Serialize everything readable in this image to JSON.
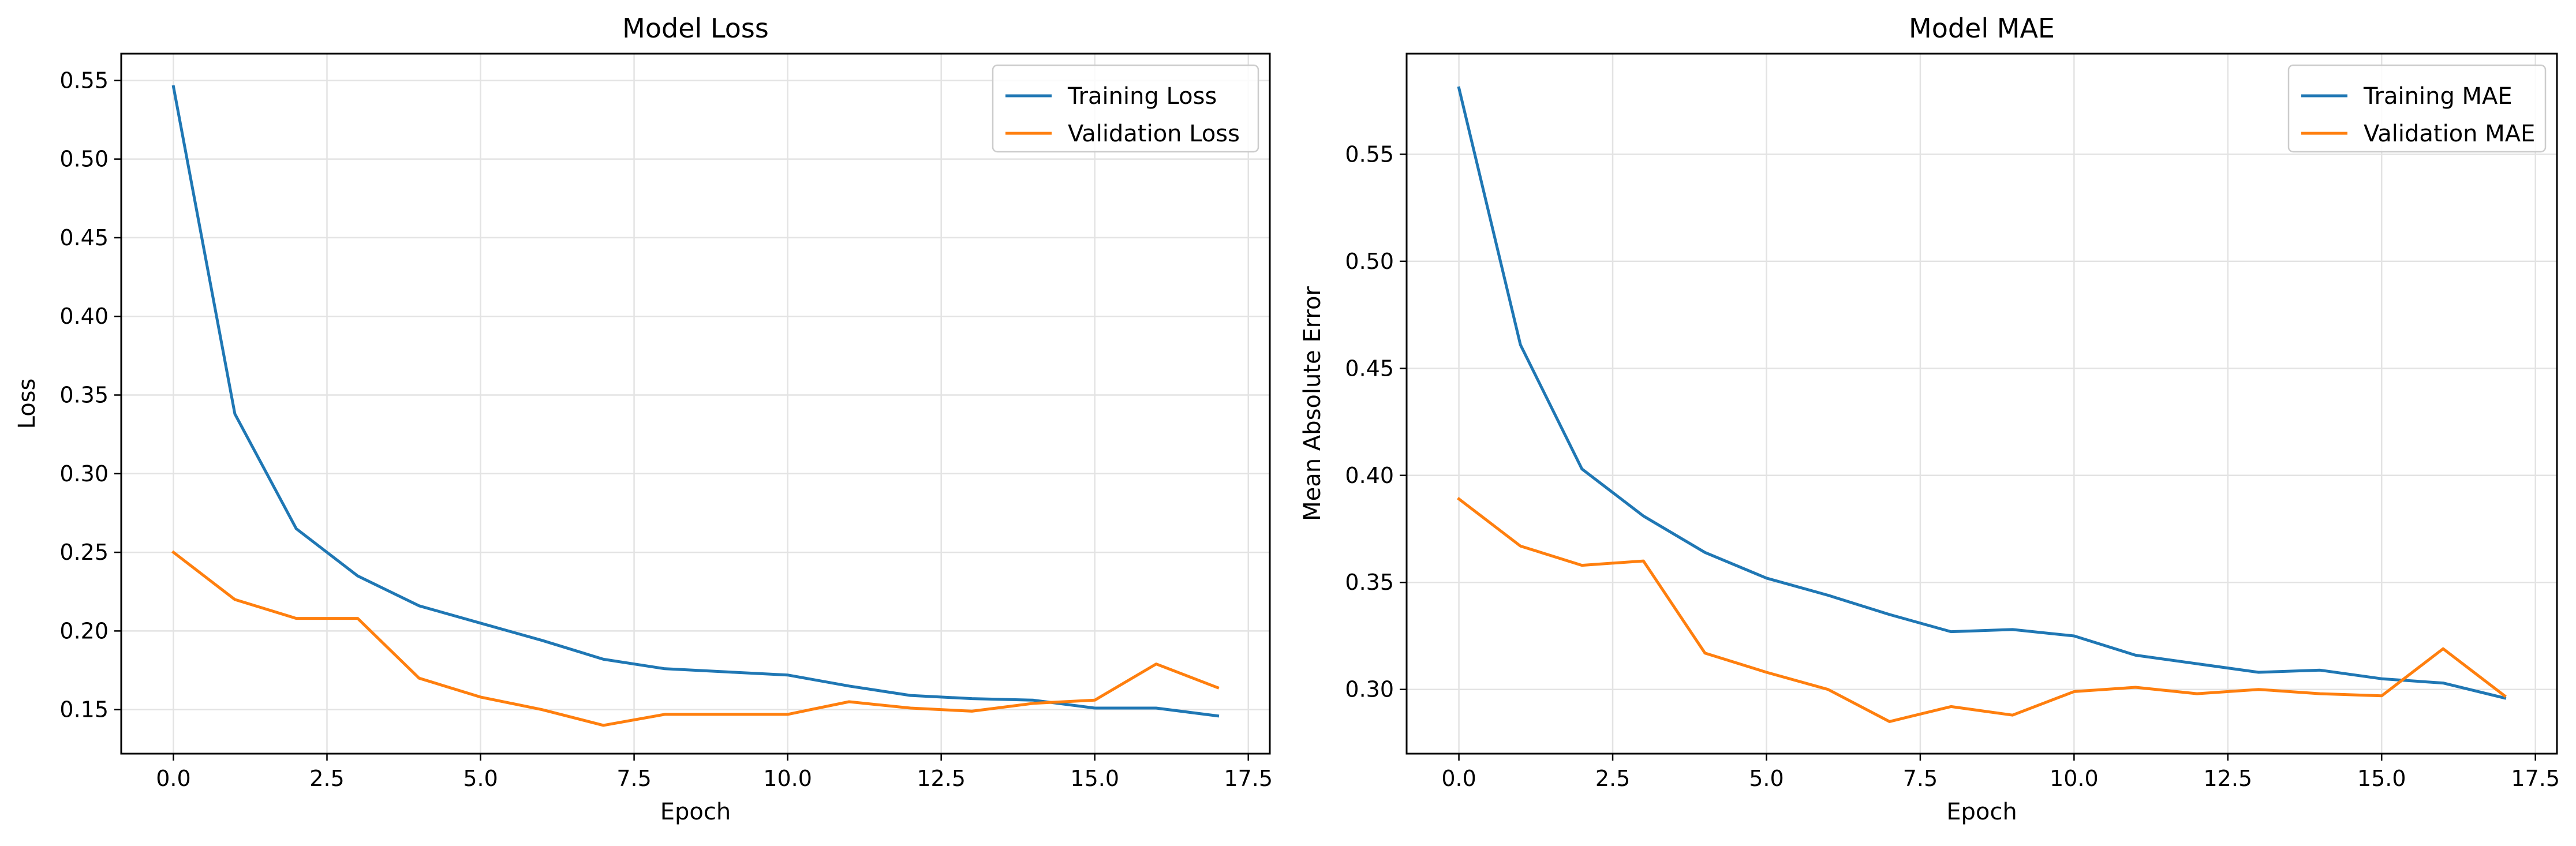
{
  "chart_data": [
    {
      "type": "line",
      "title": "Model Loss",
      "xlabel": "Epoch",
      "ylabel": "Loss",
      "x": [
        0,
        1,
        2,
        3,
        4,
        5,
        6,
        7,
        8,
        9,
        10,
        11,
        12,
        13,
        14,
        15,
        16,
        17
      ],
      "xlim": [
        -0.85,
        17.85
      ],
      "ylim": [
        0.122,
        0.567
      ],
      "xticks": [
        0.0,
        2.5,
        5.0,
        7.5,
        10.0,
        12.5,
        15.0,
        17.5
      ],
      "xtick_labels": [
        "0.0",
        "2.5",
        "5.0",
        "7.5",
        "10.0",
        "12.5",
        "15.0",
        "17.5"
      ],
      "yticks": [
        0.15,
        0.2,
        0.25,
        0.3,
        0.35,
        0.4,
        0.45,
        0.5,
        0.55
      ],
      "ytick_labels": [
        "0.15",
        "0.20",
        "0.25",
        "0.30",
        "0.35",
        "0.40",
        "0.45",
        "0.50",
        "0.55"
      ],
      "grid": true,
      "legend_position": "top-right",
      "series": [
        {
          "name": "Training Loss",
          "color": "#1f77b4",
          "values": [
            0.546,
            0.338,
            0.265,
            0.235,
            0.216,
            0.205,
            0.194,
            0.182,
            0.176,
            0.174,
            0.172,
            0.165,
            0.159,
            0.157,
            0.156,
            0.151,
            0.151,
            0.146
          ]
        },
        {
          "name": "Validation Loss",
          "color": "#ff7f0e",
          "values": [
            0.25,
            0.22,
            0.208,
            0.208,
            0.17,
            0.158,
            0.15,
            0.14,
            0.147,
            0.147,
            0.147,
            0.155,
            0.151,
            0.149,
            0.154,
            0.156,
            0.179,
            0.164
          ]
        }
      ]
    },
    {
      "type": "line",
      "title": "Model MAE",
      "xlabel": "Epoch",
      "ylabel": "Mean Absolute Error",
      "x": [
        0,
        1,
        2,
        3,
        4,
        5,
        6,
        7,
        8,
        9,
        10,
        11,
        12,
        13,
        14,
        15,
        16,
        17
      ],
      "xlim": [
        -0.85,
        17.85
      ],
      "ylim": [
        0.27,
        0.597
      ],
      "xticks": [
        0.0,
        2.5,
        5.0,
        7.5,
        10.0,
        12.5,
        15.0,
        17.5
      ],
      "xtick_labels": [
        "0.0",
        "2.5",
        "5.0",
        "7.5",
        "10.0",
        "12.5",
        "15.0",
        "17.5"
      ],
      "yticks": [
        0.3,
        0.35,
        0.4,
        0.45,
        0.5,
        0.55
      ],
      "ytick_labels": [
        "0.30",
        "0.35",
        "0.40",
        "0.45",
        "0.50",
        "0.55"
      ],
      "grid": true,
      "legend_position": "top-right",
      "series": [
        {
          "name": "Training MAE",
          "color": "#1f77b4",
          "values": [
            0.581,
            0.461,
            0.403,
            0.381,
            0.364,
            0.352,
            0.344,
            0.335,
            0.327,
            0.328,
            0.325,
            0.316,
            0.312,
            0.308,
            0.309,
            0.305,
            0.303,
            0.296
          ]
        },
        {
          "name": "Validation MAE",
          "color": "#ff7f0e",
          "values": [
            0.389,
            0.367,
            0.358,
            0.36,
            0.317,
            0.308,
            0.3,
            0.285,
            0.292,
            0.288,
            0.299,
            0.301,
            0.298,
            0.3,
            0.298,
            0.297,
            0.319,
            0.297
          ]
        }
      ]
    }
  ]
}
